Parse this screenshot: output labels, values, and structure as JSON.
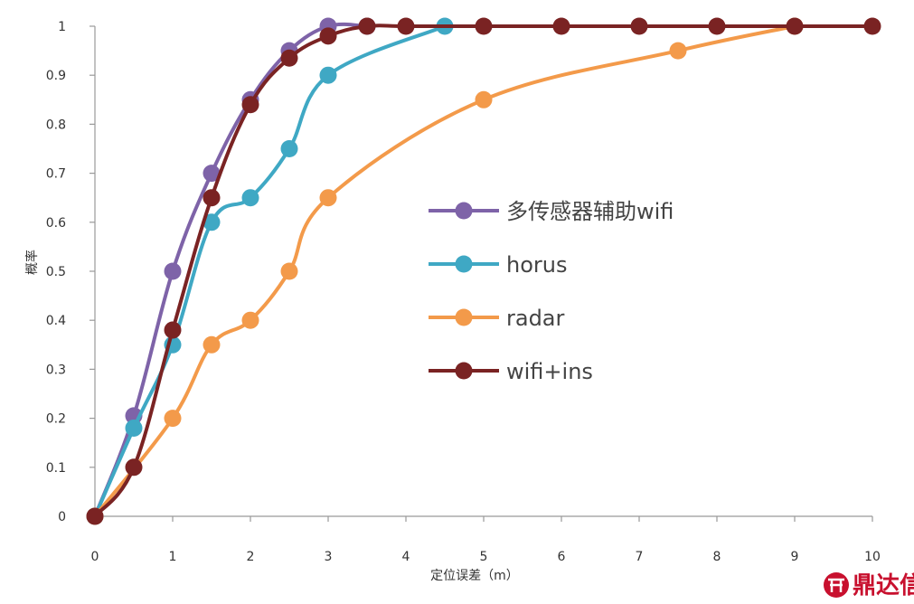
{
  "chart_data": {
    "type": "line",
    "title": "",
    "xlabel": "定位误差（m）",
    "ylabel": "概率",
    "xlim": [
      0,
      10
    ],
    "ylim": [
      0,
      1
    ],
    "x_ticks": [
      "0",
      "1",
      "2",
      "3",
      "4",
      "5",
      "6",
      "7",
      "8",
      "9",
      "10"
    ],
    "y_ticks": [
      "0",
      "0.1",
      "0.2",
      "0.3",
      "0.4",
      "0.5",
      "0.6",
      "0.7",
      "0.8",
      "0.9",
      "1"
    ],
    "grid": false,
    "legend_position": "right",
    "series": [
      {
        "name": "多传感器辅助wifi",
        "color": "#7e63a8",
        "points": [
          [
            0,
            0
          ],
          [
            0.5,
            0.205
          ],
          [
            1,
            0.5
          ],
          [
            1.5,
            0.7
          ],
          [
            2,
            0.85
          ],
          [
            2.5,
            0.95
          ],
          [
            3,
            1
          ],
          [
            3.5,
            1
          ]
        ]
      },
      {
        "name": "horus",
        "color": "#3fa8c4",
        "points": [
          [
            0,
            0
          ],
          [
            0.5,
            0.18
          ],
          [
            1,
            0.35
          ],
          [
            1.5,
            0.6
          ],
          [
            2,
            0.65
          ],
          [
            2.5,
            0.75
          ],
          [
            3,
            0.9
          ],
          [
            4.5,
            1
          ]
        ]
      },
      {
        "name": "radar",
        "color": "#f39a4a",
        "points": [
          [
            0,
            0
          ],
          [
            1,
            0.2
          ],
          [
            1.5,
            0.35
          ],
          [
            2,
            0.4
          ],
          [
            2.5,
            0.5
          ],
          [
            3,
            0.65
          ],
          [
            5,
            0.85
          ],
          [
            7.5,
            0.95
          ],
          [
            9,
            1
          ]
        ]
      },
      {
        "name": "wifi+ins",
        "color": "#7a2323",
        "points": [
          [
            0,
            0
          ],
          [
            0.5,
            0.1
          ],
          [
            1,
            0.38
          ],
          [
            1.5,
            0.65
          ],
          [
            2,
            0.84
          ],
          [
            2.5,
            0.935
          ],
          [
            3,
            0.98
          ],
          [
            3.5,
            1
          ],
          [
            4,
            1
          ],
          [
            5,
            1
          ],
          [
            6,
            1
          ],
          [
            7,
            1
          ],
          [
            8,
            1
          ],
          [
            9,
            1
          ],
          [
            10,
            1
          ]
        ]
      }
    ]
  },
  "watermark": {
    "text": "鼎达信",
    "color": "#c8102e",
    "icon": "logo-icon"
  }
}
